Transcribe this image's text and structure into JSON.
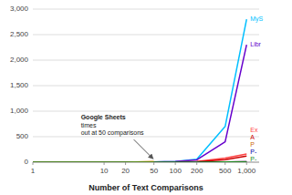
{
  "chart_data": {
    "type": "line",
    "x": [
      1,
      10,
      20,
      50,
      100,
      200,
      500,
      1000
    ],
    "series": [
      {
        "name": "MyS",
        "color": "#00bfff",
        "values": [
          0.5,
          1,
          2,
          5,
          15,
          60,
          700,
          2800
        ]
      },
      {
        "name": "Libr",
        "color": "#6600cc",
        "values": [
          0.3,
          0.8,
          1.5,
          4,
          12,
          45,
          400,
          2300
        ]
      },
      {
        "name": "Ex",
        "color": "#ff4444",
        "values": [
          0.1,
          0.3,
          0.5,
          1.5,
          5,
          15,
          80,
          160
        ]
      },
      {
        "name": "P",
        "color": "#cc6600",
        "values": [
          0.05,
          0.2,
          0.4,
          0.6,
          1.0,
          2.0,
          5.0,
          8.0
        ]
      },
      {
        "name": "A",
        "color": "#cc0000",
        "values": [
          0.1,
          0.3,
          0.5,
          1.0,
          3.0,
          10.0,
          50.0,
          120.0
        ]
      },
      {
        "name": "P-",
        "color": "#0000aa",
        "values": [
          0.05,
          0.1,
          0.2,
          0.4,
          0.8,
          1.5,
          4.0,
          7.0
        ]
      },
      {
        "color": "#ff8800",
        "values": [
          0.1,
          0.5,
          2.0,
          15.0,
          null,
          null,
          null,
          null
        ]
      },
      {
        "name": "P-",
        "color": "#228b22",
        "values": [
          0.05,
          0.1,
          0.15,
          0.3,
          0.6,
          1.2,
          3.5,
          6.0
        ]
      }
    ],
    "xlabel": "Number of Text Comparisons",
    "xlim": [
      1,
      1500
    ],
    "ylim": [
      0,
      3000
    ],
    "xticks": [
      1,
      10,
      20,
      50,
      100,
      200,
      500,
      {
        "value": 1000,
        "label": "1,000"
      }
    ],
    "yticks": [
      0,
      500,
      {
        "value": 1000,
        "label": "1,000"
      },
      {
        "value": 1500,
        "label": "1,500"
      },
      {
        "value": 2000,
        "label": "2,000"
      },
      {
        "value": 2500,
        "label": "2,500"
      },
      {
        "value": 3000,
        "label": "3,000"
      }
    ],
    "log": "x",
    "grid": true,
    "annotations": [
      {
        "label": "Google Sheets",
        "text": "times\nout at 50 comparisons",
        "x": 50,
        "y": 15
      }
    ]
  }
}
